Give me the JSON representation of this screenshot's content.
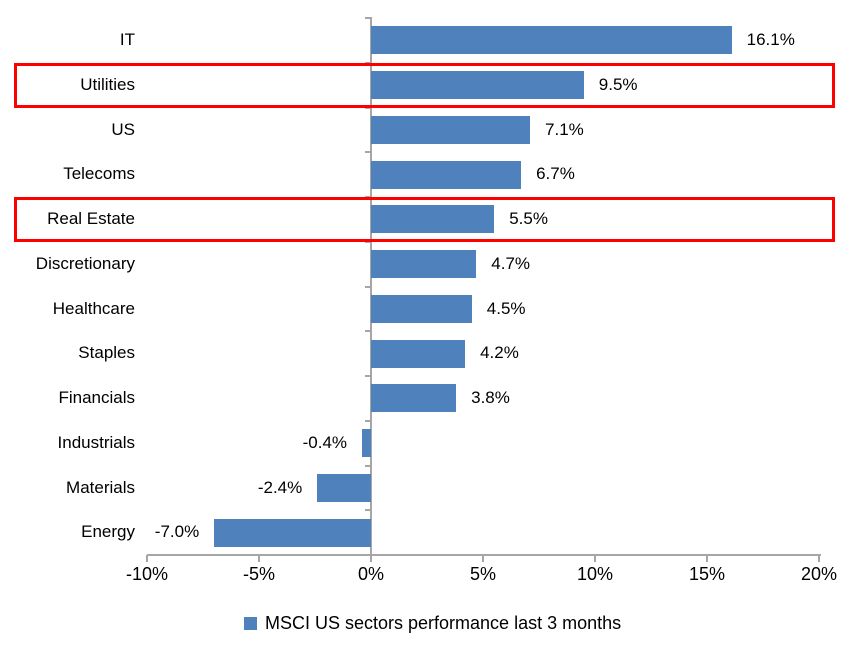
{
  "chart_data": {
    "type": "bar",
    "orientation": "horizontal",
    "categories": [
      "IT",
      "Utilities",
      "US",
      "Telecoms",
      "Real Estate",
      "Discretionary",
      "Healthcare",
      "Staples",
      "Financials",
      "Industrials",
      "Materials",
      "Energy"
    ],
    "values": [
      16.1,
      9.5,
      7.1,
      6.7,
      5.5,
      4.7,
      4.5,
      4.2,
      3.8,
      -0.4,
      -2.4,
      -7.0
    ],
    "value_labels": [
      "16.1%",
      "9.5%",
      "7.1%",
      "6.7%",
      "5.5%",
      "4.7%",
      "4.5%",
      "4.2%",
      "3.8%",
      "-0.4%",
      "-2.4%",
      "-7.0%"
    ],
    "highlighted_categories": [
      "Utilities",
      "Real Estate"
    ],
    "x_axis": {
      "min": -10,
      "max": 20,
      "tick_values": [
        -10,
        -5,
        0,
        5,
        10,
        15,
        20
      ],
      "tick_labels": [
        "-10%",
        "-5%",
        "0%",
        "5%",
        "10%",
        "15%",
        "20%"
      ]
    },
    "legend": {
      "label": "MSCI US sectors performance last 3 months",
      "position": "bottom"
    },
    "colors": {
      "bar": "#4f81bd",
      "highlight_border": "#fe0000",
      "axis": "#a6a6a6",
      "text": "#000000",
      "background": "#ffffff"
    },
    "grid": false
  }
}
